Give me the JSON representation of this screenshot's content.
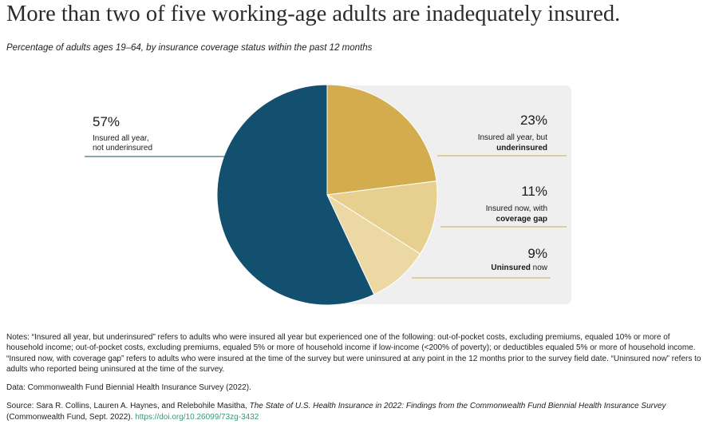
{
  "title": "More than two of five working-age adults are inadequately insured.",
  "subtitle": "Percentage of adults ages 19–64, by insurance coverage status within the past 12 months",
  "colors": {
    "dark_blue": "#13506f",
    "gold": "#d2ac4d",
    "light_gold": "#e7cf90",
    "pale_gold": "#ecd8a3",
    "panel": "#efefef",
    "leader_dark": "#13506f",
    "leader_gold": "#d2ac4d"
  },
  "chart_data": {
    "type": "pie",
    "title": "More than two of five working-age adults are inadequately insured.",
    "slices": [
      {
        "pct_label": "23%",
        "value": 23,
        "label_line1": "Insured all year, but",
        "label_line2_bold": "underinsured",
        "label_line2_normal": ""
      },
      {
        "pct_label": "11%",
        "value": 11,
        "label_line1": "Insured now, with",
        "label_line2_bold": "coverage gap",
        "label_line2_normal": ""
      },
      {
        "pct_label": "9%",
        "value": 9,
        "label_line1": "",
        "label_line2_bold": "Uninsured",
        "label_line2_normal": " now"
      },
      {
        "pct_label": "57%",
        "value": 57,
        "label_line1": "Insured all year,",
        "label_line2_bold": "",
        "label_line2_normal": "not underinsured"
      }
    ]
  },
  "notes": {
    "notes_text": "Notes: “Insured all year, but underinsured” refers to adults who were insured all year but experienced one of the following: out-of-pocket costs, excluding premiums, equaled 10% or more of household income; out-of-pocket costs, excluding premiums, equaled 5% or more of household income if low-income (<200% of poverty); or deductibles equaled 5% or more of household income. “Insured now, with coverage gap” refers to adults who were insured at the time of the survey but were uninsured at any point in the 12 months prior to the survey field date. “Uninsured now” refers to adults who reported being uninsured at the time of the survey.",
    "data_text": "Data: Commonwealth Fund Biennial Health Insurance Survey (2022).",
    "source_prefix": "Source: Sara R. Collins, Lauren A. Haynes, and Relebohile Masitha, ",
    "source_title": "The State of U.S. Health Insurance in 2022: Findings from the Commonwealth Fund Biennial Health Insurance Survey",
    "source_suffix": " (Commonwealth Fund, Sept. 2022). ",
    "source_link": "https://doi.org/10.26099/73zg-3432"
  }
}
